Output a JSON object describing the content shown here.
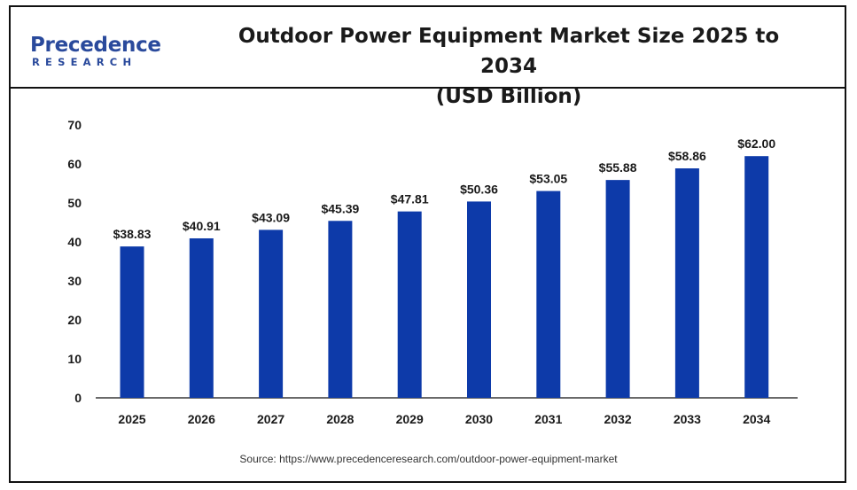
{
  "header": {
    "logo_main": "Precedence",
    "logo_sub": "RESEARCH",
    "title_line1": "Outdoor Power Equipment Market Size 2025 to 2034",
    "title_line2": "(USD Billion)"
  },
  "source_text": "Source: https://www.precedenceresearch.com/outdoor-power-equipment-market",
  "colors": {
    "bar": "#0d3aa9",
    "axis": "#111111",
    "text": "#1a1a1a",
    "brand": "#2a4a9c"
  },
  "chart_data": {
    "type": "bar",
    "title": "Outdoor Power Equipment Market Size 2025 to 2034 (USD Billion)",
    "categories": [
      "2025",
      "2026",
      "2027",
      "2028",
      "2029",
      "2030",
      "2031",
      "2032",
      "2033",
      "2034"
    ],
    "values": [
      38.83,
      40.91,
      43.09,
      45.39,
      47.81,
      50.36,
      53.05,
      55.88,
      58.86,
      62.0
    ],
    "data_labels": [
      "$38.83",
      "$40.91",
      "$43.09",
      "$45.39",
      "$47.81",
      "$50.36",
      "$53.05",
      "$55.88",
      "$58.86",
      "$62.00"
    ],
    "ylim": [
      0,
      70
    ],
    "yticks": [
      0,
      10,
      20,
      30,
      40,
      50,
      60,
      70
    ],
    "xlabel": "",
    "ylabel": "",
    "grid": false,
    "legend": "none"
  }
}
